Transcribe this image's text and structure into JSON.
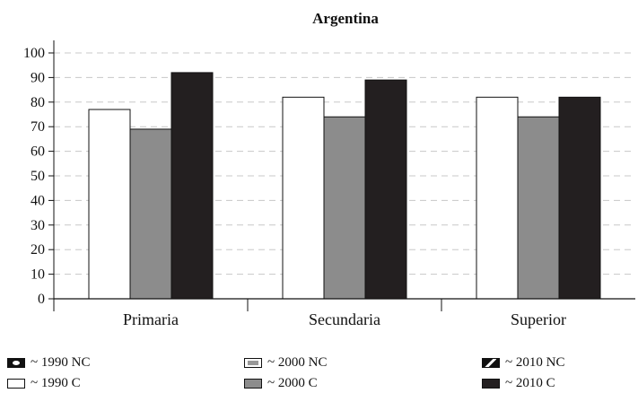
{
  "chart_data": {
    "type": "bar",
    "title": "Argentina",
    "categories": [
      "Primaria",
      "Secundaria",
      "Superior"
    ],
    "series": [
      {
        "name": "~ 1990 NC",
        "values": [
          0,
          0,
          0
        ],
        "color": "#111111",
        "pattern": "nc1990"
      },
      {
        "name": "~ 2000 NC",
        "values": [
          0,
          0,
          0
        ],
        "color": "#ffffff",
        "pattern": "nc2000"
      },
      {
        "name": "~ 2010 NC",
        "values": [
          0,
          0,
          0
        ],
        "color": "#111111",
        "pattern": "nc2010"
      },
      {
        "name": "~ 1990 C",
        "values": [
          77,
          82,
          82
        ],
        "color": "#ffffff"
      },
      {
        "name": "~ 2000 C",
        "values": [
          69,
          74,
          74
        ],
        "color": "#8c8c8c"
      },
      {
        "name": "~ 2010 C",
        "values": [
          92,
          89,
          82
        ],
        "color": "#231f20"
      }
    ],
    "ylim": [
      0,
      100
    ],
    "yticks": [
      0,
      10,
      20,
      30,
      40,
      50,
      60,
      70,
      80,
      90,
      100
    ],
    "xlabel": "",
    "ylabel": "",
    "grid": "horizontal-dashed",
    "legend": "bottom"
  }
}
